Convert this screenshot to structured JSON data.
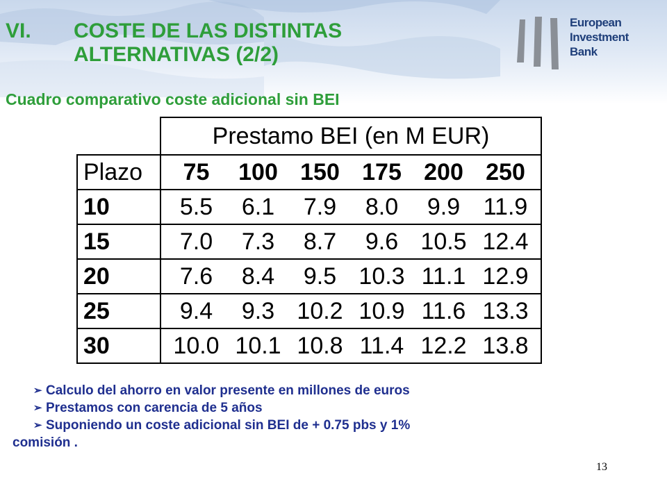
{
  "slide": {
    "title_number": "VI.",
    "title_line1": "COSTE DE LAS DISTINTAS",
    "title_line2": "ALTERNATIVAS (2/2)",
    "subtitle": "Cuadro comparativo coste adicional sin BEI",
    "page_number": "13"
  },
  "logo": {
    "line1": "European",
    "line2": "Investment",
    "line3": "Bank"
  },
  "table": {
    "header": "Prestamo BEI (en M EUR)",
    "row_header_label": "Plazo",
    "columns": [
      "75",
      "100",
      "150",
      "175",
      "200",
      "250"
    ],
    "rows": [
      {
        "plazo": "10",
        "values": [
          "5.5",
          "6.1",
          "7.9",
          "8.0",
          "9.9",
          "11.9"
        ]
      },
      {
        "plazo": "15",
        "values": [
          "7.0",
          "7.3",
          "8.7",
          "9.6",
          "10.5",
          "12.4"
        ]
      },
      {
        "plazo": "20",
        "values": [
          "7.6",
          "8.4",
          "9.5",
          "10.3",
          "11.1",
          "12.9"
        ]
      },
      {
        "plazo": "25",
        "values": [
          "9.4",
          "9.3",
          "10.2",
          "10.9",
          "11.6",
          "13.3"
        ]
      },
      {
        "plazo": "30",
        "values": [
          "10.0",
          "10.1",
          "10.8",
          "11.4",
          "12.2",
          "13.8"
        ]
      }
    ]
  },
  "notes": [
    "Calculo del ahorro en valor presente en millones de euros",
    "Prestamos con carencia de 5 años",
    "Suponiendo un coste adicional sin BEI de + 0.75 pbs y 1%"
  ],
  "notes_continuation": "comisión ."
}
